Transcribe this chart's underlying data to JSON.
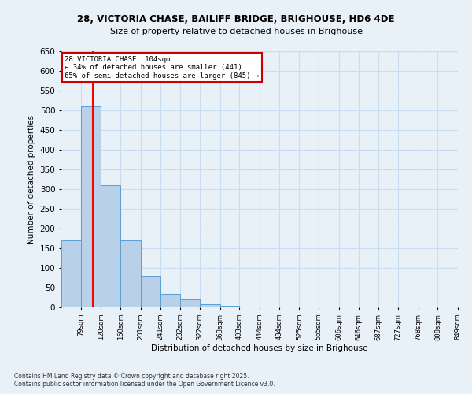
{
  "title_line1": "28, VICTORIA CHASE, BAILIFF BRIDGE, BRIGHOUSE, HD6 4DE",
  "title_line2": "Size of property relative to detached houses in Brighouse",
  "xlabel": "Distribution of detached houses by size in Brighouse",
  "ylabel": "Number of detached properties",
  "bar_edges": [
    39,
    79,
    120,
    160,
    201,
    241,
    282,
    322,
    363,
    403,
    444,
    484,
    525,
    565,
    606,
    646,
    687,
    727,
    768,
    808,
    849
  ],
  "bar_heights": [
    170,
    510,
    310,
    170,
    80,
    35,
    20,
    8,
    5,
    2,
    1,
    1,
    0,
    0,
    0,
    0,
    0,
    0,
    0,
    0
  ],
  "bar_color": "#b8d0e8",
  "bar_edge_color": "#5a9fd4",
  "grid_color": "#c8ddf0",
  "bg_color": "#e8f0f8",
  "red_line_x": 104,
  "annotation_text": "28 VICTORIA CHASE: 104sqm\n← 34% of detached houses are smaller (441)\n65% of semi-detached houses are larger (845) →",
  "annotation_box_color": "#ffffff",
  "annotation_box_edge": "#cc0000",
  "footnote1": "Contains HM Land Registry data © Crown copyright and database right 2025.",
  "footnote2": "Contains public sector information licensed under the Open Government Licence v3.0.",
  "ylim": [
    0,
    650
  ],
  "yticks": [
    0,
    50,
    100,
    150,
    200,
    250,
    300,
    350,
    400,
    450,
    500,
    550,
    600,
    650
  ]
}
